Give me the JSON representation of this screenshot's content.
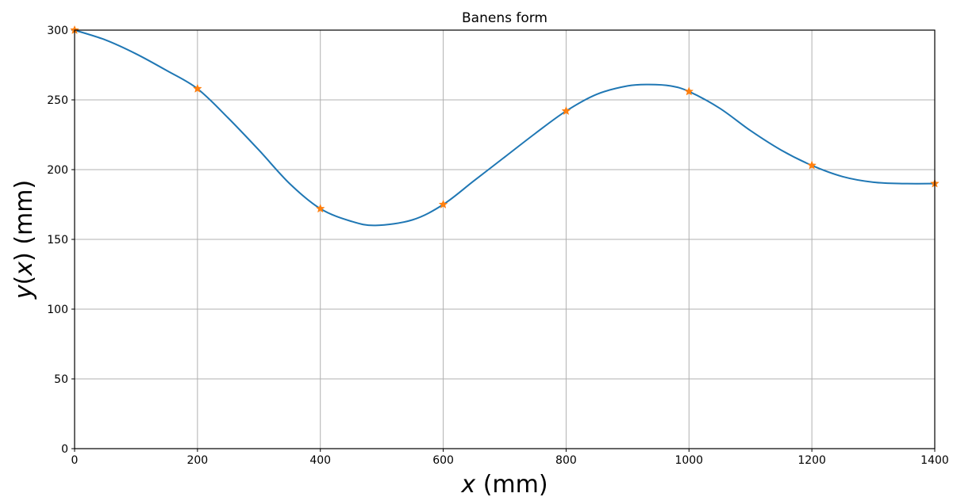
{
  "chart_data": {
    "type": "line",
    "title": "Banens form",
    "xlabel_var": "x",
    "xlabel_unit": " (mm)",
    "ylabel_var_y": "y",
    "ylabel_var_x": "x",
    "xlim": [
      0,
      1400
    ],
    "ylim": [
      0,
      300
    ],
    "x_ticks": [
      0,
      200,
      400,
      600,
      800,
      1000,
      1200,
      1400
    ],
    "y_ticks": [
      0,
      50,
      100,
      150,
      200,
      250,
      300
    ],
    "grid": true,
    "series": [
      {
        "kind": "line",
        "color": "#1f77b4",
        "x": [
          0,
          50,
          100,
          150,
          200,
          250,
          300,
          350,
          400,
          450,
          490,
          550,
          600,
          650,
          700,
          750,
          800,
          850,
          900,
          935,
          970,
          1000,
          1050,
          1100,
          1150,
          1200,
          1250,
          1300,
          1350,
          1400
        ],
        "y": [
          300,
          293,
          283,
          271,
          258,
          237,
          214,
          190,
          172,
          163,
          160,
          164,
          175,
          192,
          209,
          226,
          242,
          254,
          260,
          261,
          260,
          256,
          244,
          228,
          214,
          203,
          195,
          191,
          190,
          190
        ]
      },
      {
        "kind": "marker",
        "marker": "star",
        "color": "#ff7f0e",
        "x": [
          0,
          200,
          400,
          600,
          800,
          1000,
          1200,
          1400
        ],
        "y": [
          300,
          258,
          172,
          175,
          242,
          256,
          203,
          190
        ]
      }
    ]
  }
}
